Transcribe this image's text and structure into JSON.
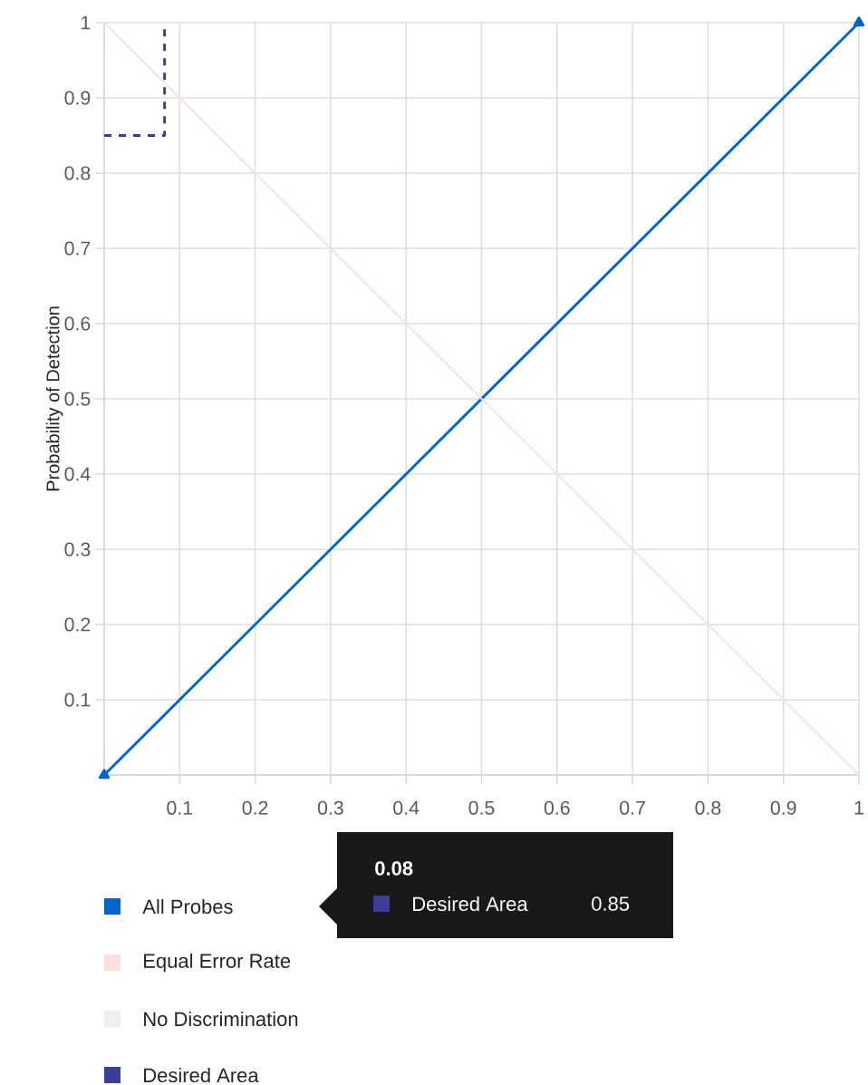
{
  "chart_data": {
    "type": "line",
    "ylabel": "Probability of Detection",
    "xlim": [
      0,
      1
    ],
    "ylim": [
      0,
      1
    ],
    "xticks": [
      0.1,
      0.2,
      0.3,
      0.4,
      0.5,
      0.6,
      0.7,
      0.8,
      0.9,
      1
    ],
    "yticks": [
      0.1,
      0.2,
      0.3,
      0.4,
      0.5,
      0.6,
      0.7,
      0.8,
      0.9,
      1
    ],
    "grid": true,
    "legend": "bottom",
    "series": [
      {
        "name": "All Probes",
        "color": "#0066cc",
        "x": [
          0,
          1
        ],
        "values": [
          0,
          1
        ],
        "marker": "triangle"
      },
      {
        "name": "Equal Error Rate",
        "color": "#f9e0dd",
        "x": [
          0,
          1
        ],
        "values": [
          1,
          0
        ]
      },
      {
        "name": "No Discrimination",
        "color": "#efefef"
      },
      {
        "name": "Desired Area",
        "color": "#3c3d99",
        "x": [
          0,
          0.08,
          0.08
        ],
        "values": [
          0.85,
          0.85,
          1
        ],
        "line_style": "dashed"
      }
    ],
    "annotations": [
      "0.08",
      "Desired Area",
      "0.85"
    ]
  }
}
